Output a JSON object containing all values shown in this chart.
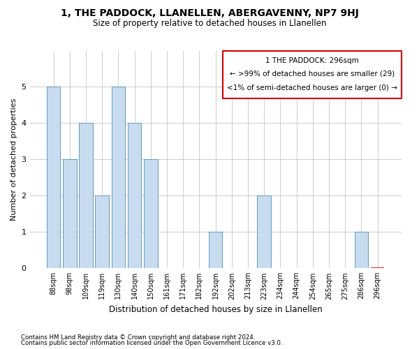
{
  "title": "1, THE PADDOCK, LLANELLEN, ABERGAVENNY, NP7 9HJ",
  "subtitle": "Size of property relative to detached houses in Llanellen",
  "xlabel": "Distribution of detached houses by size in Llanellen",
  "ylabel": "Number of detached properties",
  "categories": [
    "88sqm",
    "98sqm",
    "109sqm",
    "119sqm",
    "130sqm",
    "140sqm",
    "150sqm",
    "161sqm",
    "171sqm",
    "182sqm",
    "192sqm",
    "202sqm",
    "213sqm",
    "223sqm",
    "234sqm",
    "244sqm",
    "254sqm",
    "265sqm",
    "275sqm",
    "286sqm",
    "296sqm"
  ],
  "values": [
    5,
    3,
    4,
    2,
    5,
    4,
    3,
    0,
    0,
    0,
    1,
    0,
    0,
    2,
    0,
    0,
    0,
    0,
    0,
    1,
    0
  ],
  "highlight_index": 20,
  "bar_color": "#c8dcef",
  "bar_edge_color": "#6699bb",
  "highlight_bar_edge_color": "#cc0000",
  "legend_title": "1 THE PADDOCK: 296sqm",
  "legend_line1": "← >99% of detached houses are smaller (29)",
  "legend_line2": "<1% of semi-detached houses are larger (0) →",
  "legend_box_color": "#cc0000",
  "ylim": [
    0,
    6
  ],
  "yticks": [
    0,
    1,
    2,
    3,
    4,
    5
  ],
  "footer1": "Contains HM Land Registry data © Crown copyright and database right 2024.",
  "footer2": "Contains public sector information licensed under the Open Government Licence v3.0.",
  "bg_color": "#ffffff",
  "grid_color": "#cccccc"
}
